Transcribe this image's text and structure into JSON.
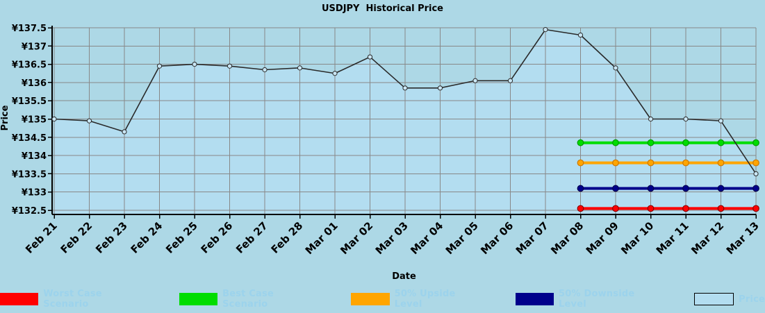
{
  "chart_data": {
    "type": "area",
    "title": "USDJPY  Historical Price",
    "xlabel": "Date",
    "ylabel": "Price",
    "currency_prefix": "¥",
    "ylim": [
      132.5,
      137.5
    ],
    "ytick_step": 0.5,
    "grid": true,
    "background": "#add8e6",
    "grid_color": "#888888",
    "axis_color": "#000000",
    "legend_position": "bottom",
    "legend_text_color": "#9cd3ec",
    "categories": [
      "Feb 21",
      "Feb 22",
      "Feb 23",
      "Feb 24",
      "Feb 25",
      "Feb 26",
      "Feb 27",
      "Feb 28",
      "Mar 01",
      "Mar 02",
      "Mar 03",
      "Mar 04",
      "Mar 05",
      "Mar 06",
      "Mar 07",
      "Mar 08",
      "Mar 09",
      "Mar 10",
      "Mar 11",
      "Mar 12",
      "Mar 13"
    ],
    "series": [
      {
        "name": "Price",
        "type": "area",
        "fill": "#b3ddf0",
        "line_color": "#2a2a2a",
        "marker_fill": "#c9e6f4",
        "values": [
          135.0,
          134.95,
          134.65,
          136.45,
          136.5,
          136.45,
          136.35,
          136.4,
          136.25,
          136.7,
          135.85,
          135.85,
          136.05,
          136.05,
          137.45,
          137.3,
          136.4,
          135.0,
          135.0,
          134.95,
          133.5
        ]
      },
      {
        "name": "Worst Case Scenario",
        "type": "line",
        "color": "#ff0000",
        "edge": "#8b0000",
        "start_index": 15,
        "end_index": 20,
        "start_label": "Mar 08",
        "end_label": "Mar 13",
        "value": 132.55
      },
      {
        "name": "Best Case Scenario",
        "type": "line",
        "color": "#00dd00",
        "edge": "#009900",
        "start_index": 15,
        "end_index": 20,
        "start_label": "Mar 08",
        "end_label": "Mar 13",
        "value": 134.35
      },
      {
        "name": "50% Upside Level",
        "type": "line",
        "color": "#ffa500",
        "edge": "#cc7700",
        "start_index": 15,
        "end_index": 20,
        "start_label": "Mar 08",
        "end_label": "Mar 13",
        "value": 133.8
      },
      {
        "name": "50% Downside Level",
        "type": "line",
        "color": "#00008b",
        "edge": "#000050",
        "start_index": 15,
        "end_index": 20,
        "start_label": "Mar 08",
        "end_label": "Mar 13",
        "value": 133.1
      }
    ],
    "legend": [
      {
        "label": "Worst Case Scenario",
        "color": "#ff0000"
      },
      {
        "label": "Best Case Scenario",
        "color": "#00dd00"
      },
      {
        "label": "50% Upside Level",
        "color": "#ffa500"
      },
      {
        "label": "50% Downside Level",
        "color": "#00008b"
      },
      {
        "label": "Price",
        "color": "#b3ddf0",
        "border": "#000000"
      }
    ]
  }
}
